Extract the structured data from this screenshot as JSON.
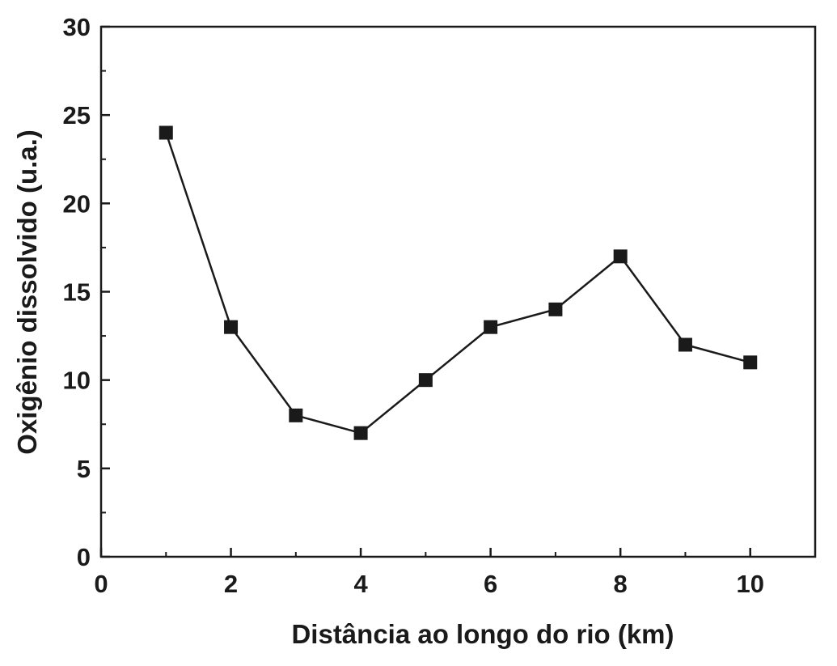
{
  "chart_data": {
    "type": "line",
    "xlabel": "Distância ao longo do rio (km)",
    "ylabel": "Oxigênio dissolvido (u.a.)",
    "xlim": [
      0,
      11
    ],
    "ylim": [
      0,
      30
    ],
    "x_ticks": [
      0,
      2,
      4,
      6,
      8,
      10
    ],
    "y_ticks": [
      0,
      5,
      10,
      15,
      20,
      25,
      30
    ],
    "x_minor_ticks": [
      1,
      3,
      5,
      7,
      9
    ],
    "y_minor_ticks": [
      2.5,
      7.5,
      12.5,
      17.5,
      22.5,
      27.5
    ],
    "grid": false,
    "legend": "none",
    "marker": "square",
    "series": [
      {
        "x": [
          1,
          2,
          3,
          4,
          5,
          6,
          7,
          8,
          9,
          10
        ],
        "y": [
          24,
          13,
          8,
          7,
          10,
          13,
          14,
          17,
          12,
          11
        ]
      }
    ],
    "colors": {
      "line": "#1a1a1a",
      "marker": "#1a1a1a",
      "axis": "#1a1a1a"
    }
  }
}
